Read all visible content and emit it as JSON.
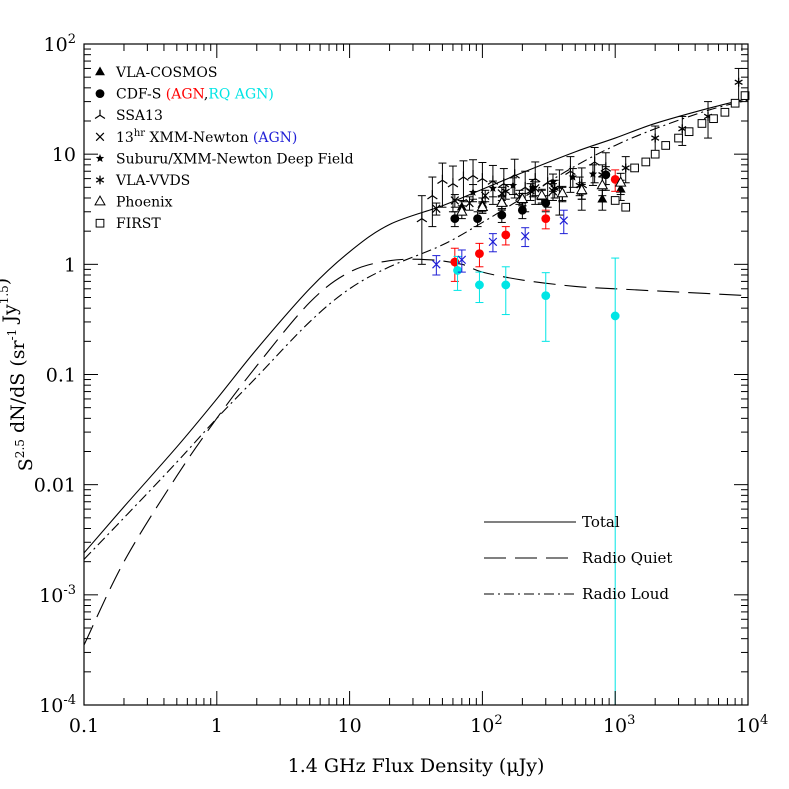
{
  "chart_data": {
    "type": "scatter",
    "xscale": "log",
    "yscale": "log",
    "xlim": [
      0.1,
      10000
    ],
    "ylim": [
      0.0001,
      100
    ],
    "xlabel": "1.4 GHz Flux Density (μJy)",
    "ylabel": "S^2.5 dN/dS (sr^-1 Jy^1.5)",
    "x_ticks": [
      {
        "value": 0.1,
        "label": "0.1"
      },
      {
        "value": 1,
        "label": "1"
      },
      {
        "value": 10,
        "label": "10"
      },
      {
        "value": 100,
        "label": "10",
        "sup": "2"
      },
      {
        "value": 1000,
        "label": "10",
        "sup": "3"
      },
      {
        "value": 10000,
        "label": "10",
        "sup": "4"
      }
    ],
    "y_ticks": [
      {
        "value": 0.0001,
        "label": "10",
        "sup": "-4"
      },
      {
        "value": 0.001,
        "label": "10",
        "sup": "-3"
      },
      {
        "value": 0.01,
        "label": "0.01"
      },
      {
        "value": 0.1,
        "label": "0.1"
      },
      {
        "value": 1,
        "label": "1"
      },
      {
        "value": 10,
        "label": "10"
      },
      {
        "value": 100,
        "label": "10",
        "sup": "2"
      }
    ],
    "legend": [
      {
        "marker": "filled-triangle",
        "parts": [
          {
            "text": "VLA-COSMOS",
            "color": "#000000"
          }
        ]
      },
      {
        "marker": "filled-circle",
        "parts": [
          {
            "text": "CDF-S ",
            "color": "#000000"
          },
          {
            "text": "(AGN",
            "color": "#ff0000"
          },
          {
            "text": ",",
            "color": "#000000"
          },
          {
            "text": "RQ AGN)",
            "color": "#00e5e5"
          }
        ]
      },
      {
        "marker": "skeletal-triangle",
        "parts": [
          {
            "text": "SSA13",
            "color": "#000000"
          }
        ]
      },
      {
        "marker": "cross",
        "parts": [
          {
            "text": "13",
            "color": "#000000"
          },
          {
            "text": "hr",
            "color": "#000000",
            "sup": true
          },
          {
            "text": " XMM-Newton ",
            "color": "#000000"
          },
          {
            "text": "(AGN)",
            "color": "#1f1fd6"
          }
        ]
      },
      {
        "marker": "star",
        "parts": [
          {
            "text": "Suburu/XMM-Newton Deep Field",
            "color": "#000000"
          }
        ]
      },
      {
        "marker": "asterisk",
        "parts": [
          {
            "text": "VLA-VVDS",
            "color": "#000000"
          }
        ]
      },
      {
        "marker": "open-triangle",
        "parts": [
          {
            "text": "Phoenix",
            "color": "#000000"
          }
        ]
      },
      {
        "marker": "open-square",
        "parts": [
          {
            "text": "FIRST",
            "color": "#000000"
          }
        ]
      }
    ],
    "line_legend": [
      {
        "label": "Total",
        "dash": "solid"
      },
      {
        "label": "Radio Quiet",
        "dash": "long-dash"
      },
      {
        "label": "Radio Loud",
        "dash": "dash-dot"
      }
    ],
    "colors": {
      "agn": "#ff0000",
      "rq_agn": "#00e5e5",
      "xmm_agn": "#1f1fd6",
      "black": "#000000"
    },
    "models": [
      {
        "name": "Total",
        "dash": "solid",
        "points": [
          [
            0.1,
            0.0024
          ],
          [
            0.2,
            0.0063
          ],
          [
            0.5,
            0.022
          ],
          [
            1,
            0.06
          ],
          [
            2,
            0.17
          ],
          [
            5,
            0.6
          ],
          [
            10,
            1.3
          ],
          [
            20,
            2.3
          ],
          [
            50,
            3.4
          ],
          [
            100,
            4.8
          ],
          [
            200,
            6.8
          ],
          [
            500,
            10.5
          ],
          [
            1000,
            14
          ],
          [
            2000,
            19
          ],
          [
            5000,
            26
          ],
          [
            10000,
            32
          ]
        ]
      },
      {
        "name": "Radio Quiet",
        "dash": "long-dash",
        "points": [
          [
            0.1,
            0.00035
          ],
          [
            0.2,
            0.002
          ],
          [
            0.5,
            0.012
          ],
          [
            1,
            0.04
          ],
          [
            2,
            0.12
          ],
          [
            5,
            0.45
          ],
          [
            10,
            0.85
          ],
          [
            20,
            1.08
          ],
          [
            40,
            1.1
          ],
          [
            70,
            1.0
          ],
          [
            100,
            0.85
          ],
          [
            200,
            0.72
          ],
          [
            500,
            0.63
          ],
          [
            1000,
            0.6
          ],
          [
            3000,
            0.56
          ],
          [
            10000,
            0.52
          ]
        ]
      },
      {
        "name": "Radio Loud",
        "dash": "dash-dot",
        "points": [
          [
            0.1,
            0.0021
          ],
          [
            0.2,
            0.005
          ],
          [
            0.5,
            0.016
          ],
          [
            1,
            0.04
          ],
          [
            2,
            0.095
          ],
          [
            5,
            0.3
          ],
          [
            10,
            0.6
          ],
          [
            20,
            0.95
          ],
          [
            50,
            1.5
          ],
          [
            100,
            2.4
          ],
          [
            200,
            4.0
          ],
          [
            500,
            7.8
          ],
          [
            1000,
            12
          ],
          [
            2000,
            17
          ],
          [
            5000,
            25
          ],
          [
            10000,
            31
          ]
        ]
      }
    ],
    "series": [
      {
        "name": "VLA-COSMOS",
        "marker": "filled-triangle",
        "color": "#000000",
        "points": [
          [
            70,
            3.3,
            0.5
          ],
          [
            100,
            3.5,
            0.5
          ],
          [
            140,
            3.7,
            0.5
          ],
          [
            200,
            3.9,
            0.5
          ],
          [
            280,
            4.1,
            0.6
          ],
          [
            400,
            4.4,
            0.6
          ],
          [
            560,
            4.6,
            0.7
          ],
          [
            800,
            3.9,
            0.8
          ],
          [
            1100,
            4.8,
            1.0
          ]
        ]
      },
      {
        "name": "SSA13",
        "marker": "skeletal-triangle",
        "color": "#000000",
        "points": [
          [
            35,
            2.6,
            1.6
          ],
          [
            42,
            4.2,
            2.0
          ],
          [
            50,
            5.8,
            2.5
          ],
          [
            60,
            5.4,
            2.4
          ],
          [
            72,
            6.2,
            2.5
          ],
          [
            85,
            6.4,
            2.5
          ],
          [
            100,
            6.0,
            2.4
          ],
          [
            120,
            5.7,
            2.2
          ],
          [
            145,
            5.4,
            2.0
          ],
          [
            175,
            6.5,
            2.5
          ],
          [
            210,
            5.0,
            2.0
          ],
          [
            250,
            6.0,
            2.5
          ],
          [
            310,
            5.5,
            2.2
          ],
          [
            380,
            5.0,
            2.2
          ],
          [
            460,
            7.0,
            2.5
          ],
          [
            560,
            5.3,
            2.2
          ],
          [
            700,
            8.5,
            3.0
          ],
          [
            850,
            7.5,
            2.8
          ]
        ]
      },
      {
        "name": "CDF-S",
        "marker": "filled-circle",
        "color": "#000000",
        "points": [
          [
            62,
            2.6,
            0.4
          ],
          [
            92,
            2.6,
            0.4
          ],
          [
            140,
            2.8,
            0.4
          ],
          [
            200,
            3.1,
            0.5
          ],
          [
            300,
            3.6,
            0.6
          ],
          [
            850,
            6.5,
            1.2
          ]
        ]
      },
      {
        "name": "CDF-S AGN",
        "marker": "filled-circle",
        "color": "#ff0000",
        "points": [
          [
            62,
            1.05,
            0.35
          ],
          [
            95,
            1.25,
            0.3
          ],
          [
            150,
            1.85,
            0.35
          ],
          [
            300,
            2.6,
            0.5
          ],
          [
            1000,
            5.9,
            1.3
          ]
        ]
      },
      {
        "name": "CDF-S RQ AGN",
        "marker": "filled-circle",
        "color": "#00e5e5",
        "points": [
          [
            65,
            0.88,
            0.3
          ],
          [
            95,
            0.65,
            0.2
          ],
          [
            150,
            0.65,
            0.3
          ],
          [
            300,
            0.52,
            0.32
          ],
          [
            1000,
            0.34,
            0.8
          ]
        ]
      },
      {
        "name": "13hr XMM-Newton",
        "marker": "cross",
        "color": "#000000",
        "points": [
          [
            45,
            3.2,
            0.4
          ],
          [
            62,
            3.8,
            0.5
          ],
          [
            80,
            3.6,
            0.5
          ],
          [
            105,
            4.2,
            0.5
          ],
          [
            140,
            4.4,
            0.6
          ],
          [
            190,
            4.1,
            0.6
          ],
          [
            250,
            4.9,
            0.7
          ],
          [
            340,
            4.6,
            0.8
          ]
        ]
      },
      {
        "name": "13hr XMM-Newton AGN",
        "marker": "cross",
        "color": "#1f1fd6",
        "points": [
          [
            45,
            1.0,
            0.2
          ],
          [
            70,
            1.1,
            0.25
          ],
          [
            120,
            1.6,
            0.3
          ],
          [
            210,
            1.8,
            0.35
          ],
          [
            410,
            2.5,
            0.6
          ]
        ]
      },
      {
        "name": "Suburu/XMM-Newton Deep Field",
        "marker": "star",
        "color": "#000000",
        "points": [
          [
            85,
            4.5,
            0.8
          ],
          [
            120,
            4.9,
            0.8
          ],
          [
            170,
            5.2,
            0.9
          ],
          [
            240,
            5.0,
            0.9
          ],
          [
            340,
            5.6,
            1.0
          ],
          [
            480,
            6.2,
            1.2
          ],
          [
            680,
            6.6,
            1.4
          ]
        ]
      },
      {
        "name": "VLA-VVDS",
        "marker": "asterisk",
        "color": "#000000",
        "points": [
          [
            150,
            4.6,
            0.7
          ],
          [
            230,
            4.6,
            0.8
          ],
          [
            350,
            4.9,
            0.9
          ],
          [
            540,
            5.2,
            1.0
          ],
          [
            800,
            6.5,
            1.5
          ],
          [
            1200,
            7.5,
            2.0
          ],
          [
            2000,
            14,
            4
          ],
          [
            3200,
            17,
            5
          ],
          [
            5000,
            22,
            8
          ],
          [
            8500,
            45,
            15
          ]
        ]
      },
      {
        "name": "Phoenix",
        "marker": "open-triangle",
        "color": "#000000",
        "points": [
          [
            70,
            3.0,
            0.4
          ],
          [
            100,
            3.3,
            0.4
          ],
          [
            140,
            3.6,
            0.5
          ],
          [
            200,
            3.9,
            0.5
          ],
          [
            280,
            4.2,
            0.6
          ],
          [
            400,
            4.4,
            0.7
          ],
          [
            560,
            4.7,
            0.8
          ],
          [
            800,
            5.2,
            1.0
          ],
          [
            1100,
            5.5,
            1.2
          ]
        ]
      },
      {
        "name": "FIRST",
        "marker": "open-square",
        "color": "#000000",
        "points": [
          [
            1000,
            3.8,
            0.2
          ],
          [
            1200,
            3.3,
            0.2
          ],
          [
            1400,
            7.5,
            0.3
          ],
          [
            1700,
            8.5,
            0.4
          ],
          [
            2000,
            10,
            0.5
          ],
          [
            2400,
            12,
            0.5
          ],
          [
            3000,
            14,
            0.6
          ],
          [
            3600,
            16,
            0.7
          ],
          [
            4500,
            19,
            0.9
          ],
          [
            5500,
            21,
            1.0
          ],
          [
            6700,
            24,
            1.2
          ],
          [
            8000,
            29,
            1.5
          ],
          [
            9500,
            34,
            2.0
          ]
        ]
      }
    ]
  }
}
